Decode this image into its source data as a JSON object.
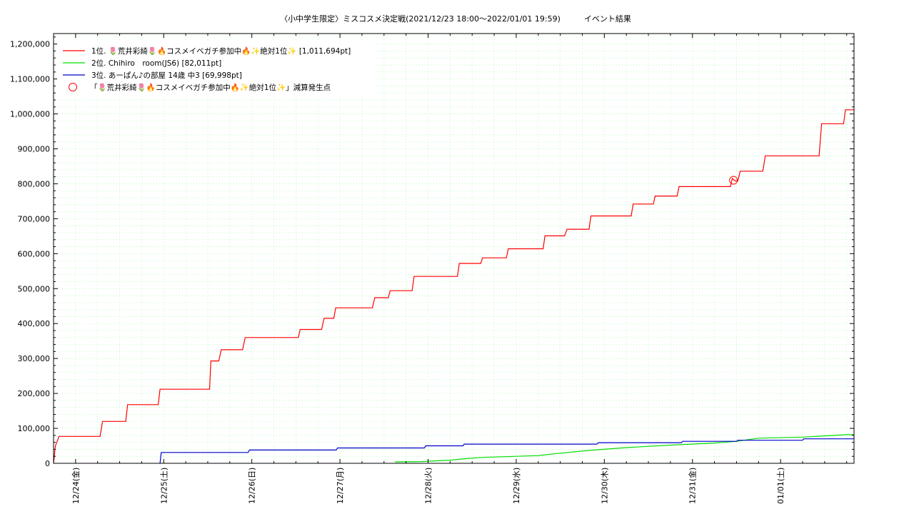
{
  "chart_data": {
    "type": "line",
    "title": "〈小中学生限定〉ミスコスメ決定戦(2021/12/23 18:00～2022/01/01 19:59)　　　イベント結果",
    "xlabel": "",
    "ylabel": "",
    "x_range": [
      "2021-12-23 18:00",
      "2022-01-01 20:00"
    ],
    "ylim": [
      0,
      1230000
    ],
    "grid": true,
    "legend_position": "top-left",
    "x_tick_labels": [
      {
        "x": "2021-12-24 00:00",
        "label": "12/24(金)"
      },
      {
        "x": "2021-12-25 00:00",
        "label": "12/25(土)"
      },
      {
        "x": "2021-12-26 00:00",
        "label": "12/26(日)"
      },
      {
        "x": "2021-12-27 00:00",
        "label": "12/27(月)"
      },
      {
        "x": "2021-12-28 00:00",
        "label": "12/28(火)"
      },
      {
        "x": "2021-12-29 00:00",
        "label": "12/29(水)"
      },
      {
        "x": "2021-12-30 00:00",
        "label": "12/30(木)"
      },
      {
        "x": "2021-12-31 00:00",
        "label": "12/31(金)"
      },
      {
        "x": "2022-01-01 00:00",
        "label": "01/01(土)"
      }
    ],
    "y_tick_labels": [
      {
        "y": 0,
        "label": "0"
      },
      {
        "y": 100000,
        "label": "100,000"
      },
      {
        "y": 200000,
        "label": "200,000"
      },
      {
        "y": 300000,
        "label": "300,000"
      },
      {
        "y": 400000,
        "label": "400,000"
      },
      {
        "y": 500000,
        "label": "500,000"
      },
      {
        "y": 600000,
        "label": "600,000"
      },
      {
        "y": 700000,
        "label": "700,000"
      },
      {
        "y": 800000,
        "label": "800,000"
      },
      {
        "y": 900000,
        "label": "900,000"
      },
      {
        "y": 1000000,
        "label": "1,000,000"
      },
      {
        "y": 1100000,
        "label": "1,100,000"
      },
      {
        "y": 1200000,
        "label": "1,200,000"
      }
    ],
    "series": [
      {
        "name": "1位. 🌷荒井彩綺🌷🔥コスメイベガチ参加中🔥✨絶対1位✨ [1,011,694pt]",
        "color": "#ff0000",
        "points": [
          [
            "2021-12-23 18:00",
            0
          ],
          [
            "2021-12-23 18:30",
            50000
          ],
          [
            "2021-12-23 19:30",
            77000
          ],
          [
            "2021-12-24 06:40",
            77000
          ],
          [
            "2021-12-24 07:20",
            120000
          ],
          [
            "2021-12-24 13:40",
            120000
          ],
          [
            "2021-12-24 14:10",
            168000
          ],
          [
            "2021-12-24 22:30",
            168000
          ],
          [
            "2021-12-24 23:00",
            212000
          ],
          [
            "2021-12-25 12:30",
            212000
          ],
          [
            "2021-12-25 12:50",
            293000
          ],
          [
            "2021-12-25 15:00",
            293000
          ],
          [
            "2021-12-25 15:40",
            325000
          ],
          [
            "2021-12-25 21:30",
            325000
          ],
          [
            "2021-12-25 22:10",
            360000
          ],
          [
            "2021-12-26 12:40",
            360000
          ],
          [
            "2021-12-26 13:10",
            383000
          ],
          [
            "2021-12-26 19:00",
            383000
          ],
          [
            "2021-12-26 19:40",
            415000
          ],
          [
            "2021-12-26 22:20",
            415000
          ],
          [
            "2021-12-26 22:50",
            445000
          ],
          [
            "2021-12-27 08:50",
            445000
          ],
          [
            "2021-12-27 09:30",
            474000
          ],
          [
            "2021-12-27 13:10",
            474000
          ],
          [
            "2021-12-27 13:40",
            494000
          ],
          [
            "2021-12-27 19:40",
            494000
          ],
          [
            "2021-12-27 20:10",
            535000
          ],
          [
            "2021-12-28 08:00",
            535000
          ],
          [
            "2021-12-28 08:30",
            572000
          ],
          [
            "2021-12-28 14:20",
            572000
          ],
          [
            "2021-12-28 14:50",
            588000
          ],
          [
            "2021-12-28 21:20",
            588000
          ],
          [
            "2021-12-28 21:50",
            614000
          ],
          [
            "2021-12-29 07:20",
            614000
          ],
          [
            "2021-12-29 07:50",
            651000
          ],
          [
            "2021-12-29 13:10",
            651000
          ],
          [
            "2021-12-29 13:50",
            670000
          ],
          [
            "2021-12-29 19:50",
            670000
          ],
          [
            "2021-12-29 20:20",
            708000
          ],
          [
            "2021-12-30 07:20",
            708000
          ],
          [
            "2021-12-30 07:50",
            742000
          ],
          [
            "2021-12-30 13:20",
            742000
          ],
          [
            "2021-12-30 13:50",
            765000
          ],
          [
            "2021-12-30 19:50",
            765000
          ],
          [
            "2021-12-30 20:20",
            792000
          ],
          [
            "2021-12-31 10:20",
            792000
          ],
          [
            "2021-12-31 10:50",
            815000
          ],
          [
            "2021-12-31 11:40",
            808000
          ],
          [
            "2021-12-31 12:20",
            808000
          ],
          [
            "2021-12-31 13:00",
            836000
          ],
          [
            "2021-12-31 19:10",
            836000
          ],
          [
            "2021-12-31 19:50",
            880000
          ],
          [
            "2022-01-01 10:30",
            880000
          ],
          [
            "2022-01-01 11:10",
            972000
          ],
          [
            "2022-01-01 17:10",
            972000
          ],
          [
            "2022-01-01 17:40",
            1011694
          ],
          [
            "2022-01-01 20:00",
            1011694
          ]
        ]
      },
      {
        "name": "2位. Chihiro　room(JS6) [82,011pt]",
        "color": "#00dd00",
        "points": [
          [
            "2021-12-27 15:00",
            4000
          ],
          [
            "2021-12-27 22:00",
            5000
          ],
          [
            "2021-12-28 06:00",
            9000
          ],
          [
            "2021-12-28 11:00",
            14000
          ],
          [
            "2021-12-28 15:00",
            17000
          ],
          [
            "2021-12-29 06:00",
            22000
          ],
          [
            "2021-12-29 11:00",
            28000
          ],
          [
            "2021-12-29 20:00",
            37000
          ],
          [
            "2021-12-30 06:00",
            45000
          ],
          [
            "2021-12-30 18:00",
            52000
          ],
          [
            "2021-12-31 06:00",
            58000
          ],
          [
            "2021-12-31 12:00",
            63000
          ],
          [
            "2021-12-31 18:00",
            72000
          ],
          [
            "2022-01-01 06:00",
            75000
          ],
          [
            "2022-01-01 18:00",
            82011
          ],
          [
            "2022-01-01 20:00",
            82011
          ]
        ]
      },
      {
        "name": "3位. あーぱん♪の部屋 14歳 中3 [69,998pt]",
        "color": "#0000cc",
        "points": [
          [
            "2021-12-24 23:00",
            0
          ],
          [
            "2021-12-24 23:20",
            31000
          ],
          [
            "2021-12-25 23:00",
            31000
          ],
          [
            "2021-12-25 23:20",
            38000
          ],
          [
            "2021-12-26 23:00",
            38000
          ],
          [
            "2021-12-26 23:20",
            44000
          ],
          [
            "2021-12-27 23:00",
            44000
          ],
          [
            "2021-12-27 23:20",
            50000
          ],
          [
            "2021-12-28 09:30",
            50000
          ],
          [
            "2021-12-28 09:50",
            55000
          ],
          [
            "2021-12-29 22:00",
            55000
          ],
          [
            "2021-12-29 22:20",
            59000
          ],
          [
            "2021-12-30 21:00",
            59000
          ],
          [
            "2021-12-30 21:20",
            63000
          ],
          [
            "2021-12-31 12:00",
            63000
          ],
          [
            "2021-12-31 12:20",
            66000
          ],
          [
            "2022-01-01 06:00",
            66000
          ],
          [
            "2022-01-01 06:20",
            69998
          ],
          [
            "2022-01-01 20:00",
            69998
          ]
        ]
      }
    ],
    "markers": [
      {
        "name": "「🌷荒井彩綺🌷🔥コスメイベガチ参加中🔥✨絶対1位✨」減算発生点",
        "color": "#ff0000",
        "shape": "open-circle",
        "points": [
          [
            "2021-12-31 11:10",
            810000
          ]
        ]
      }
    ]
  }
}
